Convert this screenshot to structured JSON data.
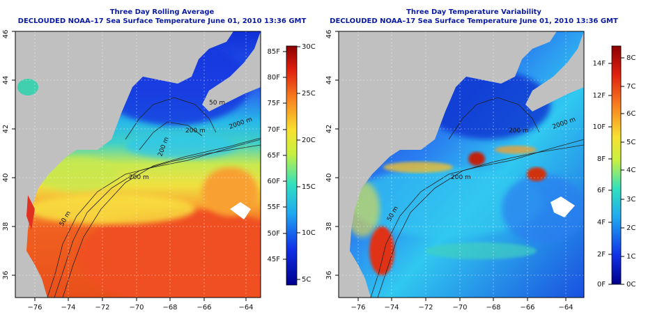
{
  "panels": [
    {
      "id": "average",
      "title": "Three Day Rolling Average",
      "subtitle": "DECLOUDED NOAA–17 Sea Surface Temperature June 01, 2010 13:36 GMT",
      "contour_labels": [
        "50 m",
        "200 m",
        "200 m",
        "2000 m",
        "50 m",
        "200 m"
      ],
      "colorbar": {
        "fahrenheit_ticks": [
          "45F",
          "50F",
          "55F",
          "60F",
          "65F",
          "70F",
          "75F",
          "80F",
          "85F"
        ],
        "celsius_ticks": [
          "5C",
          "10C",
          "15C",
          "20C",
          "25C",
          "30C"
        ]
      }
    },
    {
      "id": "variability",
      "title": "Three Day Temperature Variability",
      "subtitle": "DECLOUDED NOAA–17 Sea Surface Temperature June 01, 2010 13:36 GMT",
      "contour_labels": [
        "50 m",
        "200 m",
        "200 m",
        "2000 m"
      ],
      "colorbar": {
        "fahrenheit_ticks": [
          "0F",
          "2F",
          "4F",
          "6F",
          "8F",
          "10F",
          "12F",
          "14F"
        ],
        "celsius_ticks": [
          "0C",
          "1C",
          "2C",
          "3C",
          "4C",
          "5C",
          "6C",
          "7C",
          "8C"
        ]
      }
    }
  ],
  "axes": {
    "lon_ticks": [
      "−76",
      "−74",
      "−72",
      "−70",
      "−68",
      "−66",
      "−64"
    ],
    "lat_ticks": [
      "36",
      "38",
      "40",
      "42",
      "44",
      "46"
    ]
  },
  "colors": {
    "land": "#c0c0c0",
    "title": "#0a1aa0",
    "warm": "#e0401a",
    "cold": "#1a2ad0",
    "mid": "#f0e040"
  }
}
